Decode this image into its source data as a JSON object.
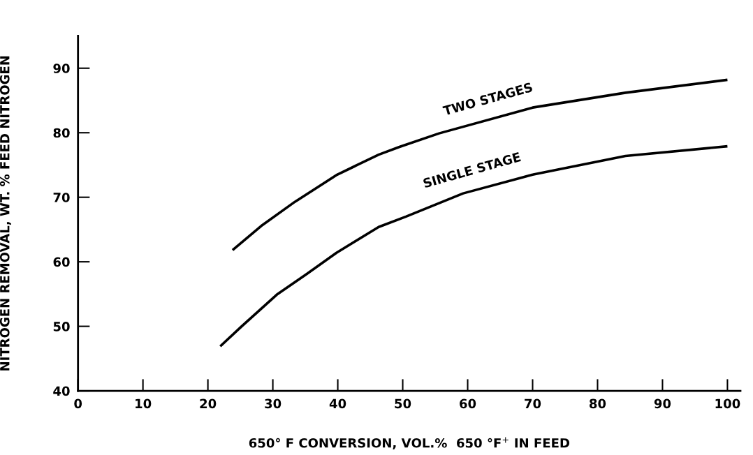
{
  "chart_data": {
    "type": "line",
    "xlabel": "650° F CONVERSION, VOL.%  650 °F$^{+}$ IN FEED",
    "ylabel": "NITROGEN REMOVAL, WT. % FEED NITROGEN",
    "series": [
      {
        "name": "TWO STAGES",
        "color": "#000000",
        "x": [
          23.8,
          28.4,
          33.4,
          39.9,
          46.3,
          49.5,
          55.6,
          70.0,
          84.3,
          100
        ],
        "values": [
          61.8,
          65.7,
          69.3,
          73.5,
          76.6,
          77.8,
          79.9,
          83.9,
          86.2,
          88.2
        ]
      },
      {
        "name": "SINGLE STAGE",
        "color": "#000000",
        "x": [
          21.9,
          25.2,
          30.6,
          35.2,
          39.8,
          46.3,
          50.5,
          59.3,
          70.0,
          84.3,
          100
        ],
        "values": [
          46.9,
          50.0,
          54.9,
          58.1,
          61.4,
          65.4,
          67.0,
          70.6,
          73.5,
          76.4,
          77.9
        ]
      }
    ],
    "xlim": [
      0,
      102
    ],
    "ylim": [
      40,
      95
    ],
    "xticks": [
      0,
      10,
      20,
      30,
      40,
      50,
      60,
      70,
      80,
      90,
      100
    ],
    "yticks": [
      40,
      50,
      60,
      70,
      80,
      90
    ],
    "grid": false,
    "legend": false,
    "marker": "none",
    "line_style": "solid"
  }
}
